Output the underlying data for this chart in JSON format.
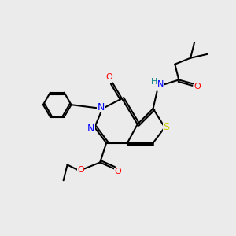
{
  "bg_color": "#ebebeb",
  "atom_colors": {
    "N": "#0000ff",
    "O": "#ff0000",
    "S": "#cccc00",
    "H": "#008080",
    "C": "#000000"
  },
  "figsize": [
    3.0,
    3.0
  ],
  "dpi": 100,
  "lw": 1.5
}
